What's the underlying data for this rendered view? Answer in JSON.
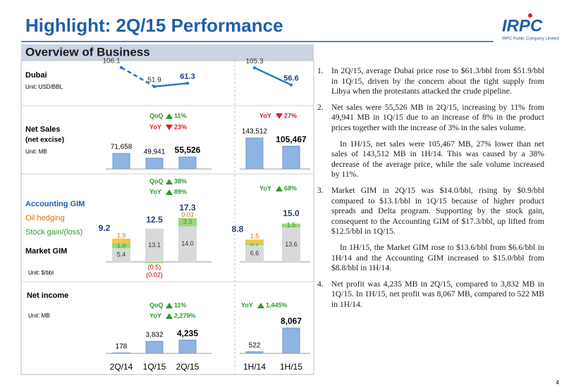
{
  "title": "Highlight: 2Q/15 Performance",
  "logo": {
    "name": "IRPC",
    "subtitle": "IRPC Public Company Limited"
  },
  "section_title": "Overview of Business",
  "periods": [
    "2Q/14",
    "1Q/15",
    "2Q/15",
    "1H/14",
    "1H/15"
  ],
  "dubai": {
    "label": "Dubai",
    "unit": "Unit: USD/BBL",
    "values": [
      106.1,
      51.9,
      61.3,
      105.3,
      56.6
    ]
  },
  "net_sales": {
    "label": "Net Sales",
    "sublabel": "(net excise)",
    "unit": "Unit: MB",
    "values": [
      71658,
      49941,
      55526,
      143512,
      105467
    ],
    "value_labels": [
      "71,658",
      "49,941",
      "55,526",
      "143,512",
      "105,467"
    ],
    "quarter_changes": [
      {
        "label": "QoQ",
        "direction": "up",
        "text": "11%"
      },
      {
        "label": "YoY",
        "direction": "down",
        "text": "23%"
      }
    ],
    "half_changes": [
      {
        "label": "YoY",
        "direction": "down",
        "text": "27%"
      }
    ]
  },
  "gim": {
    "unit": "Unit: $/bbl",
    "accounting": {
      "label": "Accounting GIM",
      "values": [
        9.2,
        12.5,
        17.3,
        8.8,
        15.0
      ],
      "value_labels": [
        "9.2",
        "12.5",
        "17.3",
        "8.8",
        "15.0"
      ]
    },
    "oil": {
      "label": "Oil hedging",
      "color": "#f2c744",
      "values": [
        1.9,
        -0.02,
        0.03,
        1.5,
        null
      ],
      "value_labels": [
        "1.9",
        "(0.02)",
        "0.03",
        "1.5",
        null
      ]
    },
    "stock": {
      "label": "Stock gain/(loss)",
      "color": "#9bd77f",
      "values": [
        1.9,
        -0.5,
        3.3,
        0.7,
        1.5
      ],
      "value_labels": [
        "1.9",
        "(0.5)",
        "3.3",
        "0.7",
        "1.5"
      ]
    },
    "market": {
      "label": "Market GIM",
      "color": "#d9d9d9",
      "values": [
        5.4,
        13.1,
        14.0,
        6.6,
        13.6
      ],
      "value_labels": [
        "5.4",
        "13.1",
        "14.0",
        "6.6",
        "13.6"
      ]
    },
    "quarter_changes": [
      {
        "label": "QoQ",
        "direction": "up",
        "text": "38%"
      },
      {
        "label": "YoY",
        "direction": "up",
        "text": "89%"
      }
    ],
    "half_changes": [
      {
        "label": "YoY",
        "direction": "up",
        "text": "68%"
      }
    ]
  },
  "net_income": {
    "label": "Net income",
    "unit": "Unit: MB",
    "values": [
      178,
      3832,
      4235,
      522,
      8067
    ],
    "value_labels": [
      "178",
      "3,832",
      "4,235",
      "522",
      "8,067"
    ],
    "quarter_changes": [
      {
        "label": "QoQ",
        "direction": "up",
        "text": "11%"
      },
      {
        "label": "YoY",
        "direction": "up",
        "text": "2,279%"
      }
    ],
    "half_changes": [
      {
        "label": "YoY",
        "direction": "up",
        "text": "1,445%"
      }
    ]
  },
  "notes": [
    {
      "number": "1.",
      "paragraphs": [
        "In 2Q/15, average Dubai price rose to $61.3/bbl from $51.9/bbl in 1Q/15, driven by the concern about the tight supply from Libya when the protestants attacked the crude pipeline."
      ]
    },
    {
      "number": "2.",
      "paragraphs": [
        "Net sales were 55,526 MB in 2Q/15, increasing by 11% from 49,941 MB in 1Q/15 due to an increase of 8% in the product prices together with the increase of 3% in the sales volume.",
        "In 1H/15, net sales were 105,467 MB, 27% lower than net sales of 143,512 MB in 1H/14. This was caused by a 38% decrease of the average price, while the sale volume increased by 11%."
      ]
    },
    {
      "number": "3.",
      "paragraphs": [
        "Market GIM in 2Q/15 was $14.0/bbl, rising by $0.9/bbl compared to $13.1/bbl in 1Q/15 because of higher product spreads and Delta program. Supporting by the stock gain, consequent to the Accounting GIM of $17.3/bbl, up lifted from $12.5/bbl in 1Q/15.",
        "In 1H/15, the Market GIM rose to $13.6/bbl from $6.6/bbl in 1H/14 and the Accounting GIM increased to $15.0/bbl from $8.8/bbl in 1H/14."
      ]
    },
    {
      "number": "4.",
      "paragraphs": [
        "Net profit was 4,235 MB in 2Q/15, compared to 3,832 MB in 1Q/15. In 1H/15, net profit was 8,067 MB, compared to  522 MB in 1H/14."
      ]
    }
  ],
  "page_number": "4"
}
